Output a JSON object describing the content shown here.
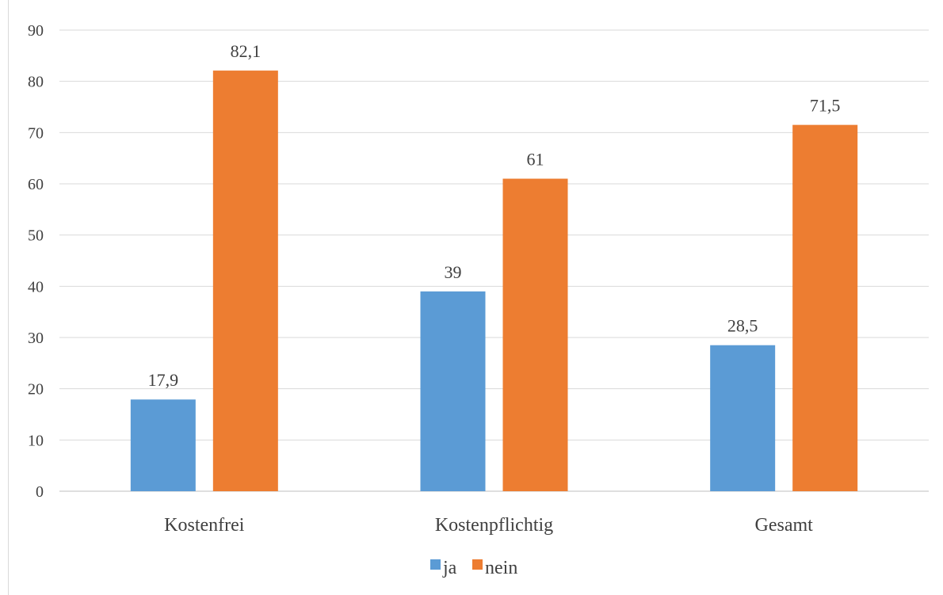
{
  "chart_data": {
    "type": "bar",
    "categories": [
      "Kostenfrei",
      "Kostenpflichtig",
      "Gesamt"
    ],
    "series": [
      {
        "name": "ja",
        "values": [
          17.9,
          39,
          28.5
        ],
        "labels": [
          "17,9",
          "39",
          "28,5"
        ],
        "color": "#5b9bd5"
      },
      {
        "name": "nein",
        "values": [
          82.1,
          61,
          71.5
        ],
        "labels": [
          "82,1",
          "61",
          "71,5"
        ],
        "color": "#ed7d31"
      }
    ],
    "y_ticks": [
      "0",
      "10",
      "20",
      "30",
      "40",
      "50",
      "60",
      "70",
      "80",
      "90"
    ],
    "ylim": [
      0,
      90
    ],
    "grid": true,
    "legend_position": "bottom",
    "title": "",
    "xlabel": "",
    "ylabel": ""
  }
}
